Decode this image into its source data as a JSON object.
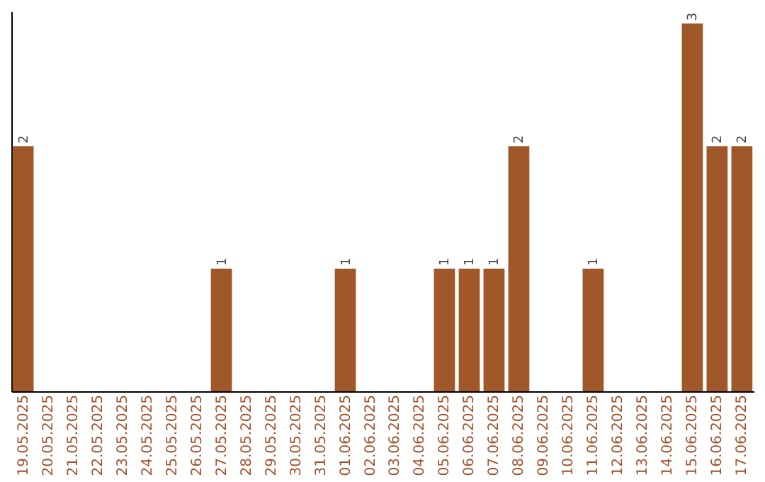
{
  "chart_data": {
    "type": "bar",
    "categories": [
      "19.05.2025",
      "20.05.2025",
      "21.05.2025",
      "22.05.2025",
      "23.05.2025",
      "24.05.2025",
      "25.05.2025",
      "26.05.2025",
      "27.05.2025",
      "28.05.2025",
      "29.05.2025",
      "30.05.2025",
      "31.05.2025",
      "01.06.2025",
      "02.06.2025",
      "03.06.2025",
      "04.06.2025",
      "05.06.2025",
      "06.06.2025",
      "07.06.2025",
      "08.06.2025",
      "09.06.2025",
      "10.06.2025",
      "11.06.2025",
      "12.06.2025",
      "13.06.2025",
      "14.06.2025",
      "15.06.2025",
      "16.06.2025",
      "17.06.2025"
    ],
    "values": [
      2,
      0,
      0,
      0,
      0,
      0,
      0,
      0,
      1,
      0,
      0,
      0,
      0,
      1,
      0,
      0,
      0,
      1,
      1,
      1,
      2,
      0,
      0,
      1,
      0,
      0,
      0,
      3,
      2,
      2
    ],
    "value_labels": [
      "2",
      null,
      null,
      null,
      null,
      null,
      null,
      null,
      "1",
      null,
      null,
      null,
      null,
      "1",
      null,
      null,
      null,
      "1",
      "1",
      "1",
      "2",
      null,
      null,
      "1",
      null,
      null,
      null,
      "3",
      "2",
      "2"
    ],
    "color": "#a0582a",
    "ylim": [
      0,
      3.1
    ],
    "tick_labels": "x",
    "grid": false
  }
}
